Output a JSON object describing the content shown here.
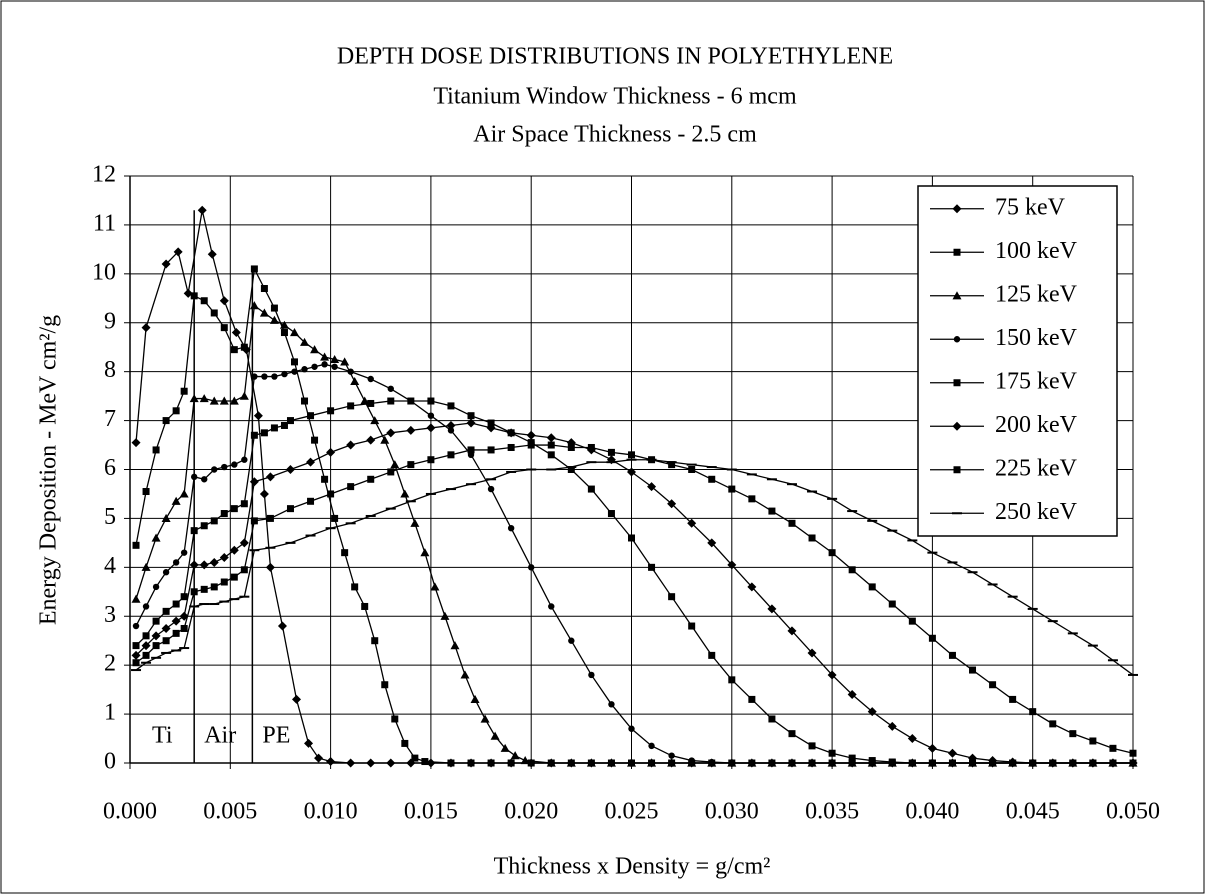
{
  "chart_data": {
    "type": "line",
    "title": "DEPTH DOSE DISTRIBUTIONS IN POLYETHYLENE",
    "subtitles": [
      "Titanium Window Thickness - 6 mcm",
      "Air Space Thickness - 2.5 cm"
    ],
    "x_label": "Thickness x Density = g/cm²",
    "y_label": "Energy Deposition - MeV cm²/g",
    "xlim": [
      0,
      0.05
    ],
    "ylim": [
      0,
      12
    ],
    "xticks": [
      {
        "value": 0,
        "label": "0.000"
      },
      {
        "value": 0.005,
        "label": "0.005"
      },
      {
        "value": 0.01,
        "label": "0.010"
      },
      {
        "value": 0.015,
        "label": "0.015"
      },
      {
        "value": 0.02,
        "label": "0.020"
      },
      {
        "value": 0.025,
        "label": "0.025"
      },
      {
        "value": 0.03,
        "label": "0.030"
      },
      {
        "value": 0.035,
        "label": "0.035"
      },
      {
        "value": 0.04,
        "label": "0.040"
      },
      {
        "value": 0.045,
        "label": "0.045"
      },
      {
        "value": 0.05,
        "label": "0.050"
      }
    ],
    "yticks": [
      0,
      1,
      2,
      3,
      4,
      5,
      6,
      7,
      8,
      9,
      10,
      11,
      12
    ],
    "grid": true,
    "legend": "upper right",
    "regions": [
      "Ti",
      "Air",
      "PE"
    ],
    "boundaries": [
      {
        "x": 0.0032,
        "top": 11.3
      },
      {
        "x": 0.0061,
        "top": 10.1
      }
    ],
    "series": [
      {
        "name": "75 keV",
        "color": "#000000",
        "marker": "diamond",
        "x": [
          0.0003,
          0.0008,
          0.0018,
          0.0024,
          0.0029,
          0.0036,
          0.0041,
          0.0047,
          0.0053,
          0.0058,
          0.0064,
          0.0067,
          0.007,
          0.0076,
          0.0083,
          0.0089,
          0.0094,
          0.01,
          0.011,
          0.012,
          0.013,
          0.014,
          0.015,
          0.016,
          0.017,
          0.018,
          0.019,
          0.02,
          0.021,
          0.022,
          0.023,
          0.024,
          0.025,
          0.026,
          0.027,
          0.028,
          0.029,
          0.03,
          0.031,
          0.032,
          0.033,
          0.034,
          0.035,
          0.036,
          0.037,
          0.038,
          0.039,
          0.04,
          0.041,
          0.042,
          0.043,
          0.044,
          0.045,
          0.046,
          0.047,
          0.048,
          0.049,
          0.05
        ],
        "values": [
          6.55,
          8.9,
          10.2,
          10.45,
          9.6,
          11.3,
          10.4,
          9.45,
          8.8,
          8.45,
          7.1,
          5.5,
          4.0,
          2.8,
          1.3,
          0.4,
          0.1,
          0.03,
          0,
          0,
          0,
          0,
          0,
          0,
          0,
          0,
          0,
          0,
          0,
          0,
          0,
          0,
          0,
          0,
          0,
          0,
          0,
          0,
          0,
          0,
          0,
          0,
          0,
          0,
          0,
          0,
          0,
          0,
          0,
          0,
          0,
          0,
          0,
          0,
          0,
          0,
          0,
          0
        ]
      },
      {
        "name": "100 keV",
        "color": "#000000",
        "marker": "square",
        "x": [
          0.0003,
          0.0008,
          0.0013,
          0.0018,
          0.0023,
          0.0027,
          0.0032,
          0.0037,
          0.0042,
          0.0047,
          0.0052,
          0.0057,
          0.0062,
          0.0067,
          0.0072,
          0.0077,
          0.0082,
          0.0087,
          0.0092,
          0.0097,
          0.0102,
          0.0107,
          0.0112,
          0.0117,
          0.0122,
          0.0127,
          0.0132,
          0.0137,
          0.0142,
          0.0147,
          0.016,
          0.017,
          0.018,
          0.019,
          0.02,
          0.021,
          0.022,
          0.023,
          0.024,
          0.025,
          0.026,
          0.027,
          0.028,
          0.029,
          0.03,
          0.031,
          0.032,
          0.033,
          0.034,
          0.035,
          0.036,
          0.037,
          0.038,
          0.039,
          0.04,
          0.041,
          0.042,
          0.043,
          0.044,
          0.045,
          0.046,
          0.047,
          0.048,
          0.049,
          0.05
        ],
        "values": [
          4.45,
          5.55,
          6.4,
          7.0,
          7.2,
          7.6,
          9.55,
          9.45,
          9.2,
          8.9,
          8.45,
          8.5,
          10.1,
          9.7,
          9.3,
          8.8,
          8.2,
          7.4,
          6.6,
          5.8,
          5.0,
          4.3,
          3.6,
          3.2,
          2.5,
          1.6,
          0.9,
          0.4,
          0.1,
          0.03,
          0,
          0,
          0,
          0,
          0,
          0,
          0,
          0,
          0,
          0,
          0,
          0,
          0,
          0,
          0,
          0,
          0,
          0,
          0,
          0,
          0,
          0,
          0,
          0,
          0,
          0,
          0,
          0,
          0,
          0,
          0,
          0,
          0,
          0,
          0
        ]
      },
      {
        "name": "125 keV",
        "color": "#000000",
        "marker": "triangle",
        "x": [
          0.0003,
          0.0008,
          0.0013,
          0.0018,
          0.0023,
          0.0027,
          0.0032,
          0.0037,
          0.0042,
          0.0047,
          0.0052,
          0.0057,
          0.0062,
          0.0067,
          0.0072,
          0.0077,
          0.0082,
          0.0087,
          0.0092,
          0.0097,
          0.0102,
          0.0107,
          0.0112,
          0.0117,
          0.0122,
          0.0127,
          0.0132,
          0.0137,
          0.0142,
          0.0147,
          0.0152,
          0.0157,
          0.0162,
          0.0167,
          0.0172,
          0.0177,
          0.0182,
          0.0187,
          0.0192,
          0.0197,
          0.021,
          0.022,
          0.023,
          0.024,
          0.025,
          0.026,
          0.027,
          0.028,
          0.029,
          0.03,
          0.031,
          0.032,
          0.033,
          0.034,
          0.035,
          0.036,
          0.037,
          0.038,
          0.039,
          0.04,
          0.041,
          0.042,
          0.043,
          0.044,
          0.045,
          0.046,
          0.047,
          0.048,
          0.049,
          0.05
        ],
        "values": [
          3.35,
          4.0,
          4.6,
          5.0,
          5.35,
          5.5,
          7.45,
          7.45,
          7.4,
          7.4,
          7.4,
          7.5,
          9.35,
          9.2,
          9.05,
          8.95,
          8.8,
          8.6,
          8.45,
          8.3,
          8.25,
          8.2,
          7.8,
          7.4,
          7.0,
          6.6,
          6.1,
          5.5,
          4.9,
          4.3,
          3.6,
          3.0,
          2.4,
          1.8,
          1.3,
          0.9,
          0.55,
          0.3,
          0.15,
          0.05,
          0,
          0,
          0,
          0,
          0,
          0,
          0,
          0,
          0,
          0,
          0,
          0,
          0,
          0,
          0,
          0,
          0,
          0,
          0,
          0,
          0,
          0,
          0,
          0,
          0,
          0,
          0,
          0,
          0,
          0
        ]
      },
      {
        "name": "150 keV",
        "color": "#000000",
        "marker": "circle",
        "x": [
          0.0003,
          0.0008,
          0.0013,
          0.0018,
          0.0023,
          0.0027,
          0.0032,
          0.0037,
          0.0042,
          0.0047,
          0.0052,
          0.0057,
          0.0062,
          0.0067,
          0.0072,
          0.0077,
          0.0082,
          0.0087,
          0.0092,
          0.0097,
          0.0102,
          0.011,
          0.012,
          0.013,
          0.014,
          0.015,
          0.016,
          0.017,
          0.018,
          0.019,
          0.02,
          0.021,
          0.022,
          0.023,
          0.024,
          0.025,
          0.026,
          0.027,
          0.028,
          0.029,
          0.03,
          0.031,
          0.032,
          0.033,
          0.034,
          0.035,
          0.036,
          0.037,
          0.038,
          0.039,
          0.04,
          0.041,
          0.042,
          0.043,
          0.044,
          0.045,
          0.046,
          0.047,
          0.048,
          0.049,
          0.05
        ],
        "values": [
          2.8,
          3.2,
          3.6,
          3.9,
          4.1,
          4.3,
          5.85,
          5.8,
          6.0,
          6.05,
          6.1,
          6.2,
          7.9,
          7.9,
          7.9,
          7.95,
          8.0,
          8.05,
          8.1,
          8.15,
          8.1,
          8.0,
          7.85,
          7.65,
          7.4,
          7.1,
          6.8,
          6.3,
          5.6,
          4.8,
          4.0,
          3.2,
          2.5,
          1.8,
          1.2,
          0.7,
          0.35,
          0.15,
          0.05,
          0.02,
          0,
          0,
          0,
          0,
          0,
          0,
          0,
          0,
          0,
          0,
          0,
          0,
          0,
          0,
          0,
          0,
          0,
          0,
          0,
          0,
          0
        ]
      },
      {
        "name": "175 keV",
        "color": "#000000",
        "marker": "square",
        "x": [
          0.0003,
          0.0008,
          0.0013,
          0.0018,
          0.0023,
          0.0027,
          0.0032,
          0.0037,
          0.0042,
          0.0047,
          0.0052,
          0.0057,
          0.0062,
          0.0067,
          0.0072,
          0.0077,
          0.008,
          0.009,
          0.01,
          0.011,
          0.012,
          0.013,
          0.014,
          0.015,
          0.016,
          0.017,
          0.018,
          0.019,
          0.02,
          0.021,
          0.022,
          0.023,
          0.024,
          0.025,
          0.026,
          0.027,
          0.028,
          0.029,
          0.03,
          0.031,
          0.032,
          0.033,
          0.034,
          0.035,
          0.036,
          0.037,
          0.038,
          0.039,
          0.04,
          0.041,
          0.042,
          0.043,
          0.044,
          0.045,
          0.046,
          0.047,
          0.048,
          0.049,
          0.05
        ],
        "values": [
          2.4,
          2.6,
          2.9,
          3.1,
          3.25,
          3.4,
          4.75,
          4.85,
          4.95,
          5.1,
          5.2,
          5.3,
          6.7,
          6.75,
          6.85,
          6.9,
          7.0,
          7.1,
          7.2,
          7.3,
          7.35,
          7.4,
          7.4,
          7.4,
          7.3,
          7.1,
          6.95,
          6.75,
          6.55,
          6.3,
          6.0,
          5.6,
          5.1,
          4.6,
          4.0,
          3.4,
          2.8,
          2.2,
          1.7,
          1.3,
          0.9,
          0.6,
          0.35,
          0.2,
          0.1,
          0.05,
          0.02,
          0,
          0,
          0,
          0,
          0,
          0,
          0,
          0,
          0,
          0,
          0,
          0
        ]
      },
      {
        "name": "200 keV",
        "color": "#000000",
        "marker": "diamond",
        "x": [
          0.0003,
          0.0008,
          0.0013,
          0.0018,
          0.0023,
          0.0027,
          0.0032,
          0.0037,
          0.0042,
          0.0047,
          0.0052,
          0.0057,
          0.0062,
          0.007,
          0.008,
          0.009,
          0.01,
          0.011,
          0.012,
          0.013,
          0.014,
          0.015,
          0.016,
          0.017,
          0.018,
          0.019,
          0.02,
          0.021,
          0.022,
          0.023,
          0.024,
          0.025,
          0.026,
          0.027,
          0.028,
          0.029,
          0.03,
          0.031,
          0.032,
          0.033,
          0.034,
          0.035,
          0.036,
          0.037,
          0.038,
          0.039,
          0.04,
          0.041,
          0.042,
          0.043,
          0.044,
          0.045,
          0.046,
          0.047,
          0.048,
          0.049,
          0.05
        ],
        "values": [
          2.2,
          2.4,
          2.6,
          2.75,
          2.9,
          3.0,
          4.05,
          4.05,
          4.1,
          4.2,
          4.35,
          4.5,
          5.75,
          5.85,
          6.0,
          6.15,
          6.35,
          6.5,
          6.6,
          6.75,
          6.8,
          6.85,
          6.9,
          6.95,
          6.85,
          6.75,
          6.7,
          6.65,
          6.55,
          6.4,
          6.2,
          5.95,
          5.65,
          5.3,
          4.9,
          4.5,
          4.05,
          3.6,
          3.15,
          2.7,
          2.25,
          1.8,
          1.4,
          1.05,
          0.75,
          0.5,
          0.3,
          0.2,
          0.1,
          0.05,
          0.02,
          0,
          0,
          0,
          0,
          0,
          0
        ]
      },
      {
        "name": "225 keV",
        "color": "#000000",
        "marker": "square",
        "x": [
          0.0003,
          0.0008,
          0.0013,
          0.0018,
          0.0023,
          0.0027,
          0.0032,
          0.0037,
          0.0042,
          0.0047,
          0.0052,
          0.0057,
          0.0062,
          0.007,
          0.008,
          0.009,
          0.01,
          0.011,
          0.012,
          0.013,
          0.014,
          0.015,
          0.016,
          0.017,
          0.018,
          0.019,
          0.02,
          0.021,
          0.022,
          0.023,
          0.024,
          0.025,
          0.026,
          0.027,
          0.028,
          0.029,
          0.03,
          0.031,
          0.032,
          0.033,
          0.034,
          0.035,
          0.036,
          0.037,
          0.038,
          0.039,
          0.04,
          0.041,
          0.042,
          0.043,
          0.044,
          0.045,
          0.046,
          0.047,
          0.048,
          0.049,
          0.05
        ],
        "values": [
          2.05,
          2.2,
          2.4,
          2.5,
          2.65,
          2.75,
          3.5,
          3.55,
          3.6,
          3.7,
          3.8,
          3.95,
          4.95,
          5.0,
          5.2,
          5.35,
          5.5,
          5.65,
          5.8,
          5.95,
          6.1,
          6.2,
          6.3,
          6.4,
          6.4,
          6.45,
          6.5,
          6.5,
          6.45,
          6.45,
          6.35,
          6.3,
          6.2,
          6.1,
          6.0,
          5.8,
          5.6,
          5.4,
          5.15,
          4.9,
          4.6,
          4.3,
          3.95,
          3.6,
          3.25,
          2.9,
          2.55,
          2.2,
          1.9,
          1.6,
          1.3,
          1.05,
          0.8,
          0.6,
          0.45,
          0.3,
          0.2
        ]
      },
      {
        "name": "250 keV",
        "color": "#000000",
        "marker": "dash",
        "x": [
          0.0003,
          0.0008,
          0.0013,
          0.0018,
          0.0023,
          0.0027,
          0.0032,
          0.0037,
          0.0042,
          0.0047,
          0.0052,
          0.0057,
          0.0062,
          0.007,
          0.008,
          0.009,
          0.01,
          0.011,
          0.012,
          0.013,
          0.014,
          0.015,
          0.016,
          0.017,
          0.018,
          0.019,
          0.02,
          0.021,
          0.022,
          0.023,
          0.024,
          0.025,
          0.026,
          0.027,
          0.028,
          0.029,
          0.03,
          0.031,
          0.032,
          0.033,
          0.034,
          0.035,
          0.036,
          0.037,
          0.038,
          0.039,
          0.04,
          0.041,
          0.042,
          0.043,
          0.044,
          0.045,
          0.046,
          0.047,
          0.048,
          0.049,
          0.05
        ],
        "values": [
          1.9,
          2.05,
          2.15,
          2.25,
          2.3,
          2.35,
          3.2,
          3.25,
          3.25,
          3.3,
          3.35,
          3.4,
          4.35,
          4.4,
          4.5,
          4.65,
          4.8,
          4.9,
          5.05,
          5.2,
          5.35,
          5.5,
          5.6,
          5.7,
          5.8,
          5.95,
          6.0,
          6.0,
          6.05,
          6.15,
          6.15,
          6.2,
          6.2,
          6.15,
          6.1,
          6.05,
          6.0,
          5.9,
          5.8,
          5.7,
          5.55,
          5.4,
          5.15,
          4.95,
          4.75,
          4.55,
          4.3,
          4.1,
          3.9,
          3.65,
          3.4,
          3.15,
          2.9,
          2.65,
          2.4,
          2.1,
          1.8
        ]
      }
    ]
  }
}
